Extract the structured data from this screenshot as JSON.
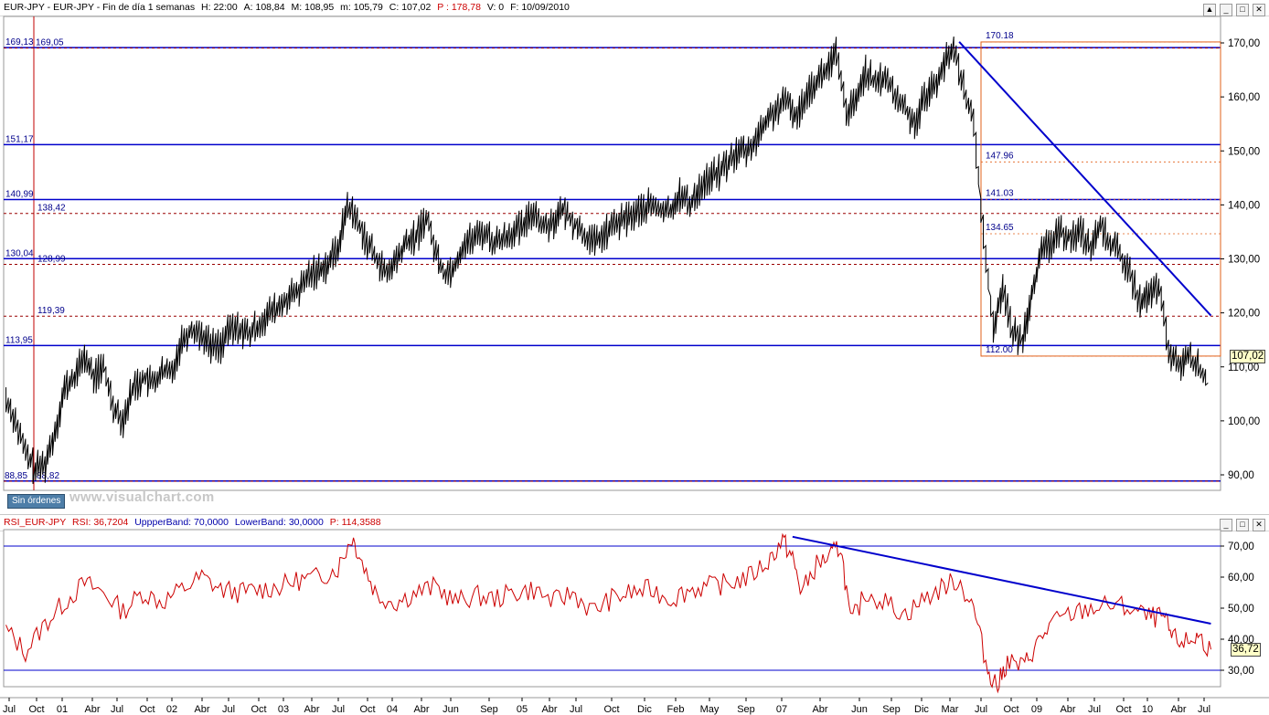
{
  "header": {
    "title": "EUR-JPY - EUR-JPY - Fin de día 1 semanas",
    "h": "H: 22:00",
    "a": "A: 108,84",
    "m": "M: 108,95",
    "mn": "m: 105,79",
    "c": "C: 107,02",
    "p": "P : 178,78",
    "v": "V: 0",
    "f": "F: 10/09/2010"
  },
  "rsi_header": {
    "name": "RSI_EUR-JPY",
    "rsi": "RSI: 36,7204",
    "upper": "UppperBand: 70,0000",
    "lower": "LowerBand: 30,0000",
    "p": "P: 114,3588"
  },
  "window_buttons": [
    "▲",
    "_",
    "□",
    "✕"
  ],
  "sin_ordenes": "Sin órdenes",
  "watermark": "www.visualchart.com",
  "current_price_label": "107,02",
  "current_rsi_label": "36,72",
  "colors": {
    "price_line": "#000000",
    "trend_lines": "#0000cc",
    "level_dashed": "#990000",
    "fibo_box": "#e2601a",
    "rsi_line": "#cc0000",
    "label_text": "#00008b"
  },
  "chart_data": [
    {
      "type": "line",
      "series": [
        {
          "name": "EUR-JPY",
          "period": "weekly",
          "points": [
            [
              "2000-06-01",
              104
            ],
            [
              "2000-07-01",
              100
            ],
            [
              "2000-08-01",
              94
            ],
            [
              "2000-09-01",
              91
            ],
            [
              "2000-10-01",
              92
            ],
            [
              "2000-11-01",
              98
            ],
            [
              "2000-12-01",
              106
            ],
            [
              "2001-01-01",
              108
            ],
            [
              "2001-02-01",
              112
            ],
            [
              "2001-03-01",
              108
            ],
            [
              "2001-04-01",
              110
            ],
            [
              "2001-05-01",
              103
            ],
            [
              "2001-06-01",
              100
            ],
            [
              "2001-07-01",
              106
            ],
            [
              "2001-08-01",
              108
            ],
            [
              "2001-09-01",
              107
            ],
            [
              "2001-10-01",
              109
            ],
            [
              "2001-11-01",
              109
            ],
            [
              "2001-12-01",
              115
            ],
            [
              "2002-01-01",
              117
            ],
            [
              "2002-02-01",
              116
            ],
            [
              "2002-03-01",
              114
            ],
            [
              "2002-04-01",
              114
            ],
            [
              "2002-05-01",
              117
            ],
            [
              "2002-06-01",
              117
            ],
            [
              "2002-07-01",
              116
            ],
            [
              "2002-08-01",
              118
            ],
            [
              "2002-09-01",
              120
            ],
            [
              "2002-10-01",
              121
            ],
            [
              "2002-11-01",
              123
            ],
            [
              "2002-12-01",
              124
            ],
            [
              "2003-01-01",
              127
            ],
            [
              "2003-02-01",
              128
            ],
            [
              "2003-03-01",
              129
            ],
            [
              "2003-04-01",
              132
            ],
            [
              "2003-05-01",
              140
            ],
            [
              "2003-06-01",
              137
            ],
            [
              "2003-07-01",
              133
            ],
            [
              "2003-08-01",
              130
            ],
            [
              "2003-09-01",
              127
            ],
            [
              "2003-10-01",
              130
            ],
            [
              "2003-11-01",
              133
            ],
            [
              "2003-12-01",
              134
            ],
            [
              "2004-01-01",
              138
            ],
            [
              "2004-02-01",
              131
            ],
            [
              "2004-03-01",
              127
            ],
            [
              "2004-04-01",
              129
            ],
            [
              "2004-05-01",
              133
            ],
            [
              "2004-06-01",
              134
            ],
            [
              "2004-07-01",
              135
            ],
            [
              "2004-08-01",
              133
            ],
            [
              "2004-09-01",
              134
            ],
            [
              "2004-10-01",
              135
            ],
            [
              "2004-11-01",
              136
            ],
            [
              "2004-12-01",
              139
            ],
            [
              "2005-01-01",
              136
            ],
            [
              "2005-02-01",
              137
            ],
            [
              "2005-03-01",
              139
            ],
            [
              "2005-04-01",
              137
            ],
            [
              "2005-05-01",
              135
            ],
            [
              "2005-06-01",
              133
            ],
            [
              "2005-07-01",
              134
            ],
            [
              "2005-08-01",
              136
            ],
            [
              "2005-09-01",
              137
            ],
            [
              "2005-10-01",
              138
            ],
            [
              "2005-11-01",
              139
            ],
            [
              "2005-12-01",
              140
            ],
            [
              "2006-01-01",
              139
            ],
            [
              "2006-02-01",
              139
            ],
            [
              "2006-03-01",
              142
            ],
            [
              "2006-04-01",
              140
            ],
            [
              "2006-05-01",
              143
            ],
            [
              "2006-06-01",
              145
            ],
            [
              "2006-07-01",
              146
            ],
            [
              "2006-08-01",
              148
            ],
            [
              "2006-09-01",
              150
            ],
            [
              "2006-10-01",
              150
            ],
            [
              "2006-11-01",
              153
            ],
            [
              "2006-12-01",
              156
            ],
            [
              "2007-01-01",
              158
            ],
            [
              "2007-02-01",
              159
            ],
            [
              "2007-03-01",
              156
            ],
            [
              "2007-04-01",
              161
            ],
            [
              "2007-05-01",
              163
            ],
            [
              "2007-06-01",
              165
            ],
            [
              "2007-07-01",
              168
            ],
            [
              "2007-08-01",
              157
            ],
            [
              "2007-09-01",
              159
            ],
            [
              "2007-10-01",
              165
            ],
            [
              "2007-11-01",
              162
            ],
            [
              "2007-12-01",
              164
            ],
            [
              "2008-01-01",
              160
            ],
            [
              "2008-02-01",
              158
            ],
            [
              "2008-03-01",
              155
            ],
            [
              "2008-04-01",
              160
            ],
            [
              "2008-05-01",
              162
            ],
            [
              "2008-06-01",
              166
            ],
            [
              "2008-07-01",
              169
            ],
            [
              "2008-08-01",
              162
            ],
            [
              "2008-09-01",
              155
            ],
            [
              "2008-10-01",
              135
            ],
            [
              "2008-11-01",
              117
            ],
            [
              "2008-12-01",
              125
            ],
            [
              "2009-01-01",
              116
            ],
            [
              "2009-02-01",
              115
            ],
            [
              "2009-03-01",
              124
            ],
            [
              "2009-04-01",
              131
            ],
            [
              "2009-05-01",
              133
            ],
            [
              "2009-06-01",
              135
            ],
            [
              "2009-07-01",
              134
            ],
            [
              "2009-08-01",
              135
            ],
            [
              "2009-09-01",
              132
            ],
            [
              "2009-10-01",
              136
            ],
            [
              "2009-11-01",
              133
            ],
            [
              "2009-12-01",
              131
            ],
            [
              "2010-01-01",
              127
            ],
            [
              "2010-02-01",
              122
            ],
            [
              "2010-03-01",
              123
            ],
            [
              "2010-04-01",
              125
            ],
            [
              "2010-05-01",
              113
            ],
            [
              "2010-06-01",
              110
            ],
            [
              "2010-07-01",
              112
            ],
            [
              "2010-08-01",
              110
            ],
            [
              "2010-09-01",
              107.02
            ]
          ]
        }
      ],
      "x_axis_labels": [
        "Jul",
        "Oct",
        "01",
        "Abr",
        "Jul",
        "Oct",
        "02",
        "Abr",
        "Jul",
        "Oct",
        "03",
        "Abr",
        "Jul",
        "Oct",
        "04",
        "Abr",
        "Jun",
        "Sep",
        "05",
        "Abr",
        "Jul",
        "Oct",
        "Dic",
        "Feb",
        "May",
        "Sep",
        "07",
        "Abr",
        "Jun",
        "Sep",
        "Dic",
        "Mar",
        "Jul",
        "Oct",
        "09",
        "Abr",
        "Jul",
        "Oct",
        "10",
        "Abr",
        "Jul"
      ],
      "y_axis_labels": [
        "170,00",
        "160,00",
        "150,00",
        "140,00",
        "130,00",
        "120,00",
        "110,00",
        "100,00",
        "90,00"
      ],
      "ylim": [
        85,
        174
      ],
      "horizontal_levels": [
        {
          "label": "169,13",
          "value": 169.13,
          "style": "solid"
        },
        {
          "label": "169,05",
          "value": 169.05,
          "style": "dashed"
        },
        {
          "label": "151,17",
          "value": 151.17,
          "style": "solid"
        },
        {
          "label": "140,99",
          "value": 140.99,
          "style": "solid"
        },
        {
          "label": "138,42",
          "value": 138.42,
          "style": "dashed"
        },
        {
          "label": "130,04",
          "value": 130.04,
          "style": "solid"
        },
        {
          "label": "128,99",
          "value": 128.99,
          "style": "dashed"
        },
        {
          "label": "119,39",
          "value": 119.39,
          "style": "dashed"
        },
        {
          "label": "113,95",
          "value": 113.95,
          "style": "solid"
        },
        {
          "label": "88,85",
          "value": 88.85,
          "style": "solid"
        },
        {
          "label": "88,82",
          "value": 88.82,
          "style": "dashed"
        }
      ],
      "fibonacci_labels": [
        {
          "label": "170.18",
          "value": 170.18
        },
        {
          "label": "147.96",
          "value": 147.96
        },
        {
          "label": "141.03",
          "value": 141.03
        },
        {
          "label": "134.65",
          "value": 134.65
        },
        {
          "label": "112.00",
          "value": 112.0
        }
      ],
      "trend_line": {
        "from": [
          "2008-07-18",
          170.2
        ],
        "to": [
          "2010-09-10",
          119.5
        ]
      }
    },
    {
      "type": "line",
      "series": [
        {
          "name": "RSI_EUR-JPY",
          "points": [
            [
              "2000-06-01",
              43
            ],
            [
              "2000-08-01",
              36
            ],
            [
              "2000-10-01",
              45
            ],
            [
              "2000-12-01",
              52
            ],
            [
              "2001-02-01",
              58
            ],
            [
              "2001-04-01",
              55
            ],
            [
              "2001-06-01",
              49
            ],
            [
              "2001-08-01",
              55
            ],
            [
              "2001-10-01",
              52
            ],
            [
              "2001-12-01",
              56
            ],
            [
              "2002-02-01",
              60
            ],
            [
              "2002-04-01",
              56
            ],
            [
              "2002-06-01",
              55
            ],
            [
              "2002-08-01",
              56
            ],
            [
              "2002-10-01",
              57
            ],
            [
              "2002-12-01",
              59
            ],
            [
              "2003-02-01",
              60
            ],
            [
              "2003-04-01",
              63
            ],
            [
              "2003-05-15",
              73
            ],
            [
              "2003-06-15",
              65
            ],
            [
              "2003-08-01",
              54
            ],
            [
              "2003-10-01",
              52
            ],
            [
              "2003-12-01",
              55
            ],
            [
              "2004-02-01",
              57
            ],
            [
              "2004-04-01",
              52
            ],
            [
              "2004-06-01",
              54
            ],
            [
              "2004-08-01",
              53
            ],
            [
              "2004-10-01",
              55
            ],
            [
              "2004-12-01",
              56
            ],
            [
              "2005-02-01",
              52
            ],
            [
              "2005-04-01",
              55
            ],
            [
              "2005-06-01",
              49
            ],
            [
              "2005-08-01",
              53
            ],
            [
              "2005-10-01",
              55
            ],
            [
              "2005-12-01",
              56
            ],
            [
              "2006-02-01",
              53
            ],
            [
              "2006-04-01",
              56
            ],
            [
              "2006-06-01",
              57
            ],
            [
              "2006-08-01",
              58
            ],
            [
              "2006-10-01",
              60
            ],
            [
              "2006-12-01",
              65
            ],
            [
              "2007-01-15",
              72
            ],
            [
              "2007-02-15",
              66
            ],
            [
              "2007-03-15",
              55
            ],
            [
              "2007-05-01",
              64
            ],
            [
              "2007-06-15",
              67
            ],
            [
              "2007-07-15",
              70
            ],
            [
              "2007-08-15",
              45
            ],
            [
              "2007-10-01",
              55
            ],
            [
              "2007-12-01",
              52
            ],
            [
              "2008-02-01",
              48
            ],
            [
              "2008-04-01",
              53
            ],
            [
              "2008-06-01",
              57
            ],
            [
              "2008-07-15",
              59
            ],
            [
              "2008-09-01",
              50
            ],
            [
              "2008-10-15",
              30
            ],
            [
              "2008-11-15",
              25
            ],
            [
              "2008-12-15",
              33
            ],
            [
              "2009-02-01",
              31
            ],
            [
              "2009-03-15",
              38
            ],
            [
              "2009-05-01",
              45
            ],
            [
              "2009-07-01",
              48
            ],
            [
              "2009-09-01",
              50
            ],
            [
              "2009-11-01",
              51
            ],
            [
              "2010-01-01",
              50
            ],
            [
              "2010-03-01",
              47
            ],
            [
              "2010-04-15",
              47
            ],
            [
              "2010-05-15",
              40
            ],
            [
              "2010-07-01",
              39
            ],
            [
              "2010-08-01",
              41
            ],
            [
              "2010-09-10",
              36.72
            ]
          ]
        }
      ],
      "y_axis_labels": [
        "70,00",
        "60,00",
        "50,00",
        "40,00",
        "30,00"
      ],
      "ylim": [
        24,
        75
      ],
      "bands": {
        "upper": 70,
        "lower": 30
      },
      "trend_line": {
        "from": [
          "2007-02-15",
          73
        ],
        "to": [
          "2010-09-10",
          45
        ]
      }
    }
  ]
}
